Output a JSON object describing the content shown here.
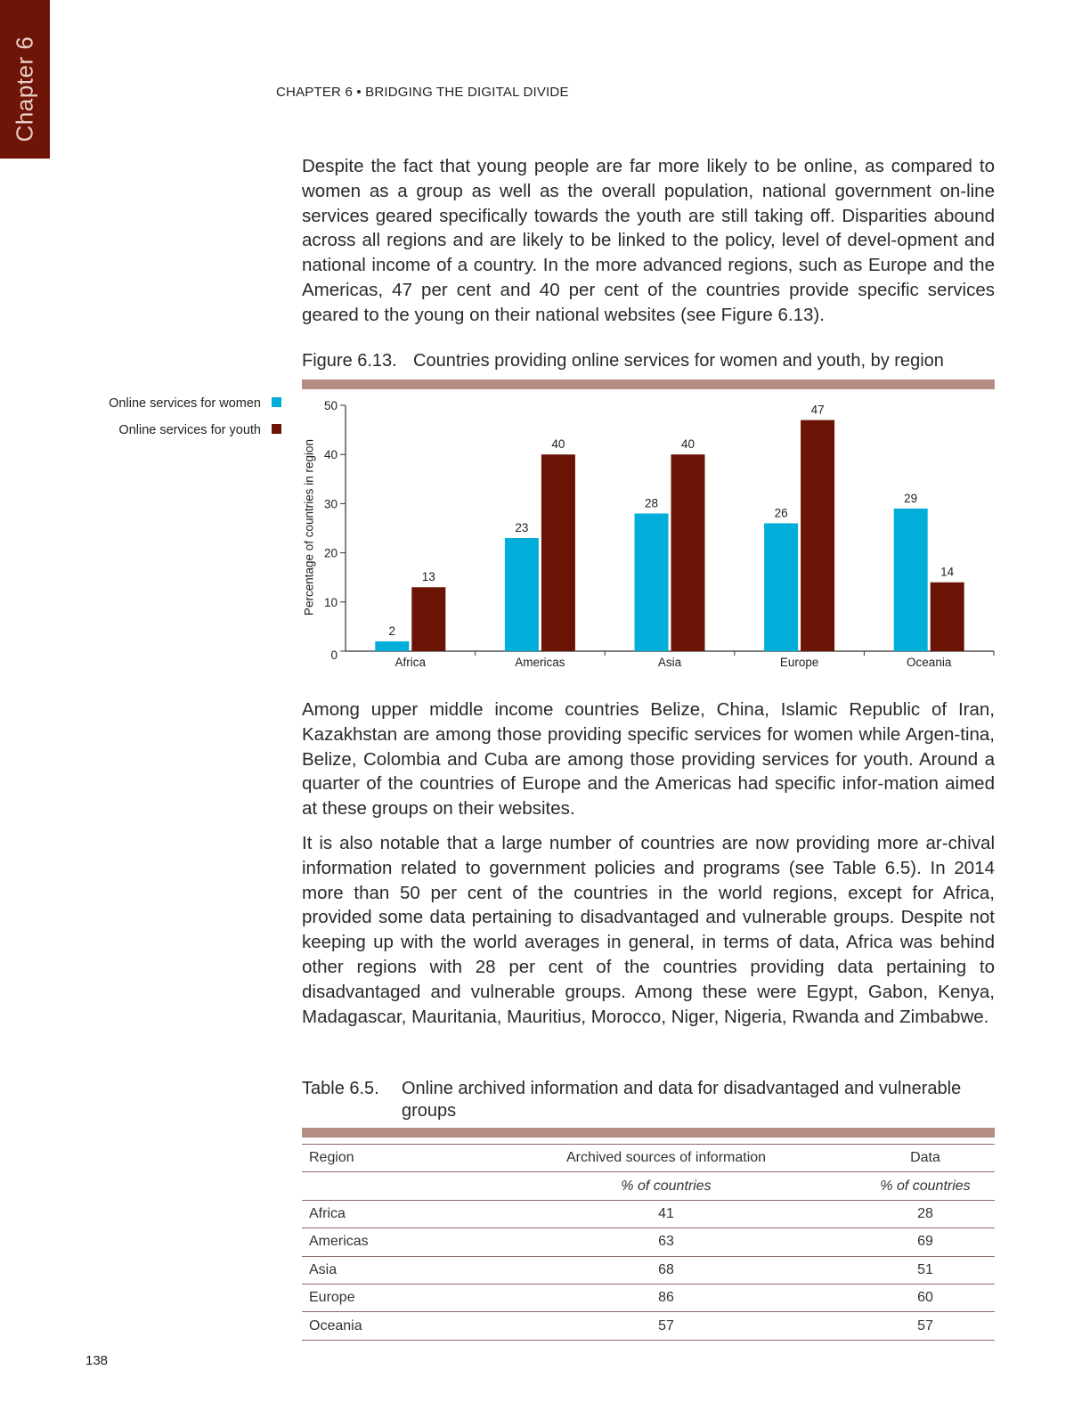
{
  "chapter_tab": "Chapter 6",
  "running_head": "CHAPTER 6 • BRIDGING THE DIGITAL DIVIDE",
  "paragraphs": {
    "p1": "Despite the fact that young people are far more likely to be online, as compared to women as a group as well as the overall population, national government on-line services geared specifically towards the youth are still taking off. Disparities abound across all regions and are likely to be linked to the policy, level of devel-opment and national income of a country. In the more advanced regions, such as Europe and the Americas, 47 per cent and 40 per cent of the countries provide specific services geared to the young on their national websites (see Figure 6.13).",
    "p2": "Among upper middle income countries Belize, China, Islamic Republic of Iran, Kazakhstan are among those providing specific services for women while Argen-tina, Belize, Colombia and Cuba are among those providing services for youth. Around a quarter of the countries of Europe and the Americas had specific infor-mation aimed at these groups on their websites.",
    "p3": "It is also notable that a large number of countries are now providing more ar-chival information related to government policies and programs (see Table 6.5). In 2014 more than 50 per cent of the countries in the world regions, except for Africa, provided some data pertaining to disadvantaged and vulnerable groups. Despite not keeping up with the world averages in general, in terms of data, Africa was behind other regions with 28 per cent of the countries providing data pertaining to disadvantaged and vulnerable groups. Among these were Egypt, Gabon, Kenya, Madagascar, Mauritania, Mauritius, Morocco, Niger, Nigeria, Rwanda and Zimbabwe."
  },
  "figure": {
    "number": "Figure 6.13.",
    "title": "Countries providing online services for women and youth, by region"
  },
  "chart_data": {
    "type": "bar",
    "categories": [
      "Africa",
      "Americas",
      "Asia",
      "Europe",
      "Oceania"
    ],
    "series": [
      {
        "name": "Online services for women",
        "values": [
          2,
          23,
          28,
          26,
          29
        ],
        "color": "#00aed9"
      },
      {
        "name": "Online services for youth",
        "values": [
          13,
          40,
          40,
          47,
          14
        ],
        "color": "#6b1405"
      }
    ],
    "ylabel": "Percentage of countries in region",
    "ylim": [
      0,
      50
    ],
    "yticks": [
      0,
      10,
      20,
      30,
      40,
      50
    ],
    "legend": "left",
    "grid": false
  },
  "table": {
    "number": "Table 6.5.",
    "title": "Online archived information and data for disadvantaged and vulnerable groups",
    "headers": [
      "Region",
      "Archived sources of information",
      "Data"
    ],
    "subheaders": [
      "",
      "% of countries",
      "% of countries"
    ],
    "rows": [
      [
        "Africa",
        "41",
        "28"
      ],
      [
        "Americas",
        "63",
        "69"
      ],
      [
        "Asia",
        "68",
        "51"
      ],
      [
        "Europe",
        "86",
        "60"
      ],
      [
        "Oceania",
        "57",
        "57"
      ]
    ]
  },
  "page_number": "138"
}
